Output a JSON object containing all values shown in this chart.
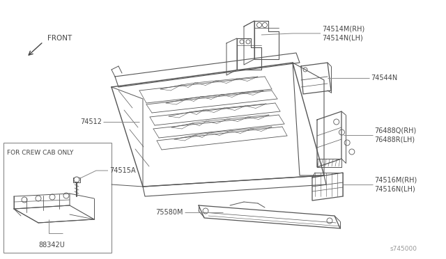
{
  "bg_color": "#ffffff",
  "line_color": "#555555",
  "label_color": "#444444",
  "leader_color": "#888888",
  "watermark": "s745000",
  "front_text": "FRONT",
  "crew_cab_text": "FOR CREW CAB ONLY",
  "labels": {
    "74514MN": "74514M(RH)\n74514N(LH)",
    "74544N": "74544N",
    "76488QR": "76488Q(RH)\n76488R(LH)",
    "74516MN": "74516M(RH)\n74516N(LH)",
    "74512": "74512",
    "75580M": "75580M",
    "74515A": "74515A",
    "88342U": "88342U"
  }
}
